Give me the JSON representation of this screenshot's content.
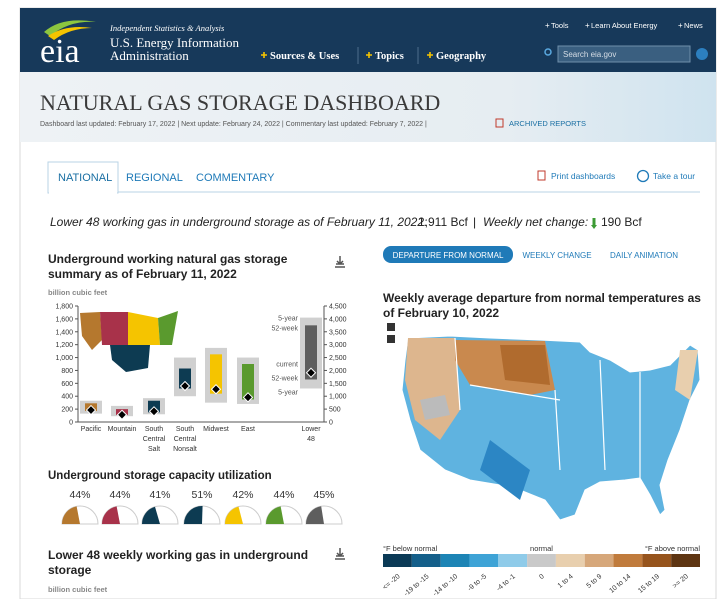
{
  "header": {
    "logo": "eia",
    "tagline": "Independent Statistics & Analysis",
    "agency_lines": [
      "U.S. Energy Information",
      "Administration"
    ],
    "nav": [
      "Sources & Uses",
      "Topics",
      "Geography"
    ],
    "top_links": [
      "Tools",
      "Learn About Energy",
      "News"
    ],
    "search_placeholder": "Search eia.gov"
  },
  "banner": {
    "title": "NATURAL GAS STORAGE DASHBOARD",
    "updates": "Dashboard last updated: February 17, 2022 | Next update: February 24, 2022 | Commentary last updated: February 7, 2022 |",
    "archived": "ARCHIVED REPORTS"
  },
  "tabs": {
    "items": [
      "NATIONAL",
      "REGIONAL",
      "COMMENTARY"
    ],
    "active": 0,
    "actions": [
      "Print dashboards",
      "Take a tour"
    ]
  },
  "summary": {
    "lead": "Lower 48 working gas in underground storage as of February 11, 2022:",
    "stock": "1,911 Bcf",
    "separator": "|",
    "change_label": "Weekly net change:",
    "change": "190 Bcf"
  },
  "storage_chart": {
    "title_lines": [
      "Underground working natural gas storage",
      "summary as of February 11, 2022"
    ],
    "unit": "billion cubic feet",
    "categories": [
      [
        "Pacific"
      ],
      [
        "Mountain"
      ],
      [
        "South",
        "Central",
        "Salt"
      ],
      [
        "South",
        "Central",
        "Nonsalt"
      ],
      [
        "Midwest"
      ],
      [
        "East"
      ],
      [
        "Lower",
        "48"
      ]
    ],
    "axis": [
      "y",
      "y",
      "y",
      "y",
      "y",
      "y",
      "y2"
    ],
    "current": [
      185,
      112,
      166,
      558,
      508,
      383,
      1911
    ],
    "range_5yr": [
      [
        130,
        330
      ],
      [
        90,
        250
      ],
      [
        120,
        370
      ],
      [
        400,
        1000
      ],
      [
        300,
        1150
      ],
      [
        280,
        1000
      ],
      [
        1300,
        4050
      ]
    ],
    "range_52wk": [
      [
        170,
        290
      ],
      [
        110,
        200
      ],
      [
        150,
        330
      ],
      [
        520,
        830
      ],
      [
        440,
        1050
      ],
      [
        350,
        900
      ],
      [
        1650,
        3750
      ]
    ],
    "colors": [
      "#b5782e",
      "#a8324a",
      "#0d3b52",
      "#0d3b52",
      "#f5c400",
      "#5a9a2e",
      "#5e5e5e"
    ],
    "ylim": [
      0,
      1800
    ],
    "yticks": [
      0,
      200,
      400,
      600,
      800,
      {
        "value": 1000,
        "label": "1,000"
      },
      {
        "value": 1200,
        "label": "1,200"
      },
      {
        "value": 1400,
        "label": "1,400"
      },
      {
        "value": 1600,
        "label": "1,600"
      },
      {
        "value": 1800,
        "label": "1,800"
      }
    ],
    "y2lim": [
      0,
      4500
    ],
    "y2ticks": [
      0,
      500,
      {
        "value": 1000,
        "label": "1,000"
      },
      {
        "value": 1500,
        "label": "1,500"
      },
      {
        "value": 2000,
        "label": "2,000"
      },
      {
        "value": 2500,
        "label": "2,500"
      },
      {
        "value": 3000,
        "label": "3,000"
      },
      {
        "value": 3500,
        "label": "3,500"
      },
      {
        "value": 4000,
        "label": "4,000"
      },
      {
        "value": 4500,
        "label": "4,500"
      }
    ],
    "lower48_labels": [
      "5-year",
      "52-week",
      "current",
      "52-week",
      "5-year"
    ]
  },
  "utilization": {
    "title": "Underground storage capacity utilization",
    "values": [
      44,
      44,
      41,
      51,
      42,
      44,
      45
    ],
    "value_labels": [
      "44%",
      "44%",
      "41%",
      "51%",
      "42%",
      "44%",
      "45%"
    ],
    "colors": [
      "#b5782e",
      "#a8324a",
      "#0d3b52",
      "#0d3b52",
      "#f5c400",
      "#5a9a2e",
      "#5e5e5e"
    ]
  },
  "weekly_panel": {
    "title_lines": [
      "Lower 48 weekly working gas in underground",
      "storage"
    ],
    "unit": "billion cubic feet"
  },
  "map_panel": {
    "buttons": [
      "DEPARTURE FROM NORMAL",
      "WEEKLY CHANGE",
      "DAILY ANIMATION"
    ],
    "active": 0,
    "title_lines": [
      "Weekly average departure from normal temperatures as",
      "of February 10, 2022"
    ],
    "legend": {
      "below": "°F below normal",
      "normal": "normal",
      "above": "°F above normal",
      "bins": [
        "<= -20",
        "-19 to -15",
        "-14 to -10",
        "-9 to -5",
        "-4 to -1",
        "0",
        "1 to 4",
        "5 to 9",
        "10 to 14",
        "15 to 19",
        ">= 20"
      ],
      "colors": [
        "#0b3a56",
        "#145f8a",
        "#1d84b5",
        "#3ea3d6",
        "#8fcbe9",
        "#c9c9c9",
        "#e8cfae",
        "#d6a77a",
        "#c07b3c",
        "#96541d",
        "#5e3512"
      ]
    }
  }
}
